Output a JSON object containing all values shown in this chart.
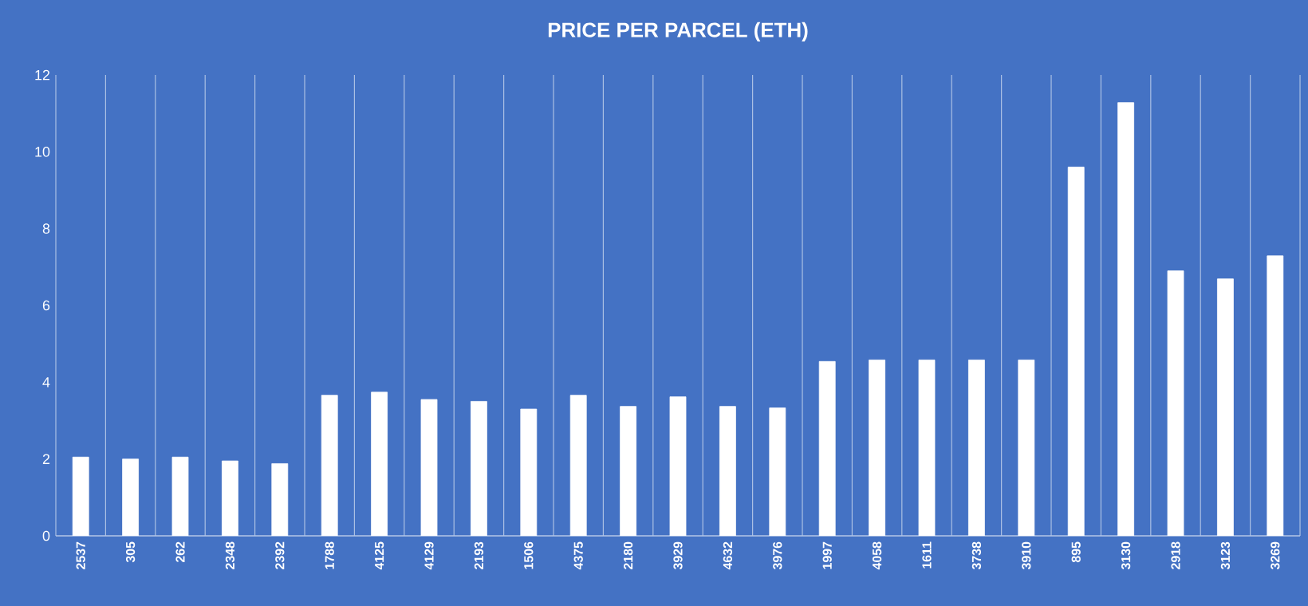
{
  "chart_data": {
    "type": "bar",
    "title": "PRICE PER PARCEL (ETH)",
    "categories": [
      "2537",
      "305",
      "262",
      "2348",
      "2392",
      "1788",
      "4125",
      "4129",
      "2193",
      "1506",
      "4375",
      "2180",
      "3929",
      "4632",
      "3976",
      "1997",
      "4058",
      "1611",
      "3738",
      "3910",
      "895",
      "3130",
      "2918",
      "3123",
      "3269"
    ],
    "values": [
      2.05,
      2.0,
      2.05,
      1.95,
      1.88,
      3.66,
      3.74,
      3.55,
      3.5,
      3.3,
      3.66,
      3.37,
      3.62,
      3.37,
      3.33,
      4.54,
      4.58,
      4.58,
      4.58,
      4.58,
      9.6,
      11.28,
      6.9,
      6.69,
      7.29
    ],
    "color": "#ffffff",
    "ylim": [
      0,
      12
    ],
    "yticks": [
      0,
      2,
      4,
      6,
      8,
      10,
      12
    ],
    "grid": "x"
  }
}
